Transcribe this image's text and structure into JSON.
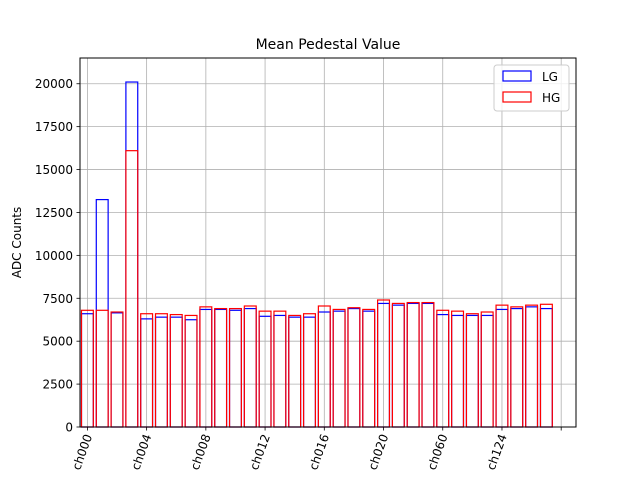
{
  "chart_data": {
    "type": "bar",
    "title": "Mean Pedestal Value",
    "xlabel": "",
    "ylabel": "ADC Counts",
    "ylim": [
      0,
      21500
    ],
    "yticks": [
      0,
      2500,
      5000,
      7500,
      10000,
      12500,
      15000,
      17500,
      20000
    ],
    "ytick_labels": [
      "0",
      "2500",
      "5000",
      "7500",
      "10000",
      "12500",
      "15000",
      "17500",
      "20000"
    ],
    "xticks": [
      0,
      4,
      8,
      12,
      16,
      20,
      24,
      28,
      32
    ],
    "xtick_labels": [
      "ch000",
      "ch004",
      "ch008",
      "ch012",
      "ch016",
      "ch020",
      "ch060",
      "ch124",
      ""
    ],
    "xlim": [
      -0.5,
      33
    ],
    "grid": true,
    "legend_position": "top-right",
    "series": [
      {
        "name": "LG",
        "color": "#0000ff",
        "values": [
          6600,
          13250,
          6650,
          20100,
          6300,
          6400,
          6400,
          6250,
          6850,
          6850,
          6800,
          6900,
          6450,
          6500,
          6400,
          6400,
          6700,
          6750,
          6900,
          6750,
          7200,
          7100,
          7200,
          7200,
          6550,
          6500,
          6500,
          6500,
          6850,
          6900,
          7000,
          6900
        ]
      },
      {
        "name": "HG",
        "color": "#ff0000",
        "values": [
          6800,
          6800,
          6700,
          16100,
          6600,
          6600,
          6550,
          6500,
          7000,
          6900,
          6900,
          7050,
          6750,
          6750,
          6500,
          6600,
          7050,
          6850,
          6950,
          6850,
          7400,
          7200,
          7250,
          7250,
          6800,
          6750,
          6600,
          6700,
          7100,
          7000,
          7100,
          7150
        ]
      }
    ]
  }
}
